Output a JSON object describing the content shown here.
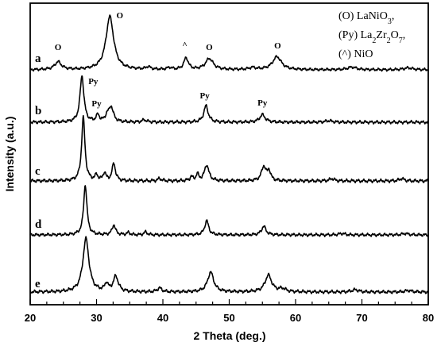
{
  "chart_data": {
    "type": "line",
    "xlabel": "2 Theta (deg.)",
    "ylabel": "Intensity (a.u.)",
    "xlim": [
      20,
      80
    ],
    "xticks": [
      20,
      30,
      40,
      50,
      60,
      70,
      80
    ],
    "grid": false,
    "legend": {
      "placement": "top-right",
      "entries": [
        "(O) LaNiO3,",
        "(Py) La2Zr2O7,",
        "(^) NiO"
      ]
    },
    "series": [
      {
        "name": "a",
        "baseline": 0.0,
        "peaks": [
          [
            24.2,
            0.12,
            0.6
          ],
          [
            32.0,
            0.82,
            0.7
          ],
          [
            37.8,
            0.04,
            0.4
          ],
          [
            41.0,
            0.03,
            0.4
          ],
          [
            43.5,
            0.18,
            0.4
          ],
          [
            47.0,
            0.17,
            0.7
          ],
          [
            53.5,
            0.03,
            0.6
          ],
          [
            57.2,
            0.2,
            0.8
          ],
          [
            68.5,
            0.04,
            0.8
          ],
          [
            77.0,
            0.03,
            0.8
          ]
        ],
        "annotations": [
          {
            "x": 24.2,
            "label": "O"
          },
          {
            "x": 33.5,
            "label": "O"
          },
          {
            "x": 43.3,
            "label": "^"
          },
          {
            "x": 47.0,
            "label": "O"
          },
          {
            "x": 57.3,
            "label": "O"
          }
        ]
      },
      {
        "name": "b",
        "baseline": 0.0,
        "peaks": [
          [
            27.8,
            0.62,
            0.35
          ],
          [
            30.2,
            0.09,
            0.3
          ],
          [
            31.6,
            0.08,
            0.3
          ],
          [
            32.2,
            0.2,
            0.4
          ],
          [
            37.2,
            0.03,
            0.4
          ],
          [
            46.5,
            0.22,
            0.4
          ],
          [
            55.0,
            0.1,
            0.5
          ],
          [
            65.0,
            0.02,
            0.6
          ]
        ],
        "annotations": [
          {
            "x": 29.5,
            "label": "Py"
          },
          {
            "x": 30.0,
            "label": "Py"
          },
          {
            "x": 46.3,
            "label": "Py"
          },
          {
            "x": 55.0,
            "label": "Py"
          }
        ]
      },
      {
        "name": "c",
        "baseline": 0.0,
        "peaks": [
          [
            28.0,
            0.8,
            0.3
          ],
          [
            30.0,
            0.07,
            0.25
          ],
          [
            31.2,
            0.1,
            0.25
          ],
          [
            32.6,
            0.22,
            0.3
          ],
          [
            39.5,
            0.03,
            0.3
          ],
          [
            44.3,
            0.05,
            0.25
          ],
          [
            45.2,
            0.08,
            0.25
          ],
          [
            46.6,
            0.2,
            0.4
          ],
          [
            55.2,
            0.18,
            0.4
          ],
          [
            56.0,
            0.12,
            0.3
          ],
          [
            65.5,
            0.03,
            0.4
          ],
          [
            76.0,
            0.03,
            0.4
          ]
        ],
        "annotations": []
      },
      {
        "name": "d",
        "baseline": 0.0,
        "peaks": [
          [
            28.3,
            0.7,
            0.3
          ],
          [
            32.6,
            0.14,
            0.3
          ],
          [
            34.8,
            0.03,
            0.3
          ],
          [
            37.4,
            0.04,
            0.3
          ],
          [
            46.6,
            0.2,
            0.35
          ],
          [
            55.2,
            0.12,
            0.4
          ],
          [
            67.0,
            0.02,
            0.5
          ],
          [
            76.5,
            0.02,
            0.5
          ]
        ],
        "annotations": []
      },
      {
        "name": "e",
        "baseline": 0.0,
        "peaks": [
          [
            28.4,
            0.7,
            0.55
          ],
          [
            31.5,
            0.1,
            0.3
          ],
          [
            32.9,
            0.2,
            0.45
          ],
          [
            39.5,
            0.05,
            0.4
          ],
          [
            47.2,
            0.26,
            0.55
          ],
          [
            55.9,
            0.22,
            0.6
          ],
          [
            58.0,
            0.04,
            0.6
          ],
          [
            69.0,
            0.03,
            0.6
          ],
          [
            77.0,
            0.02,
            0.6
          ]
        ],
        "annotations": []
      }
    ]
  }
}
